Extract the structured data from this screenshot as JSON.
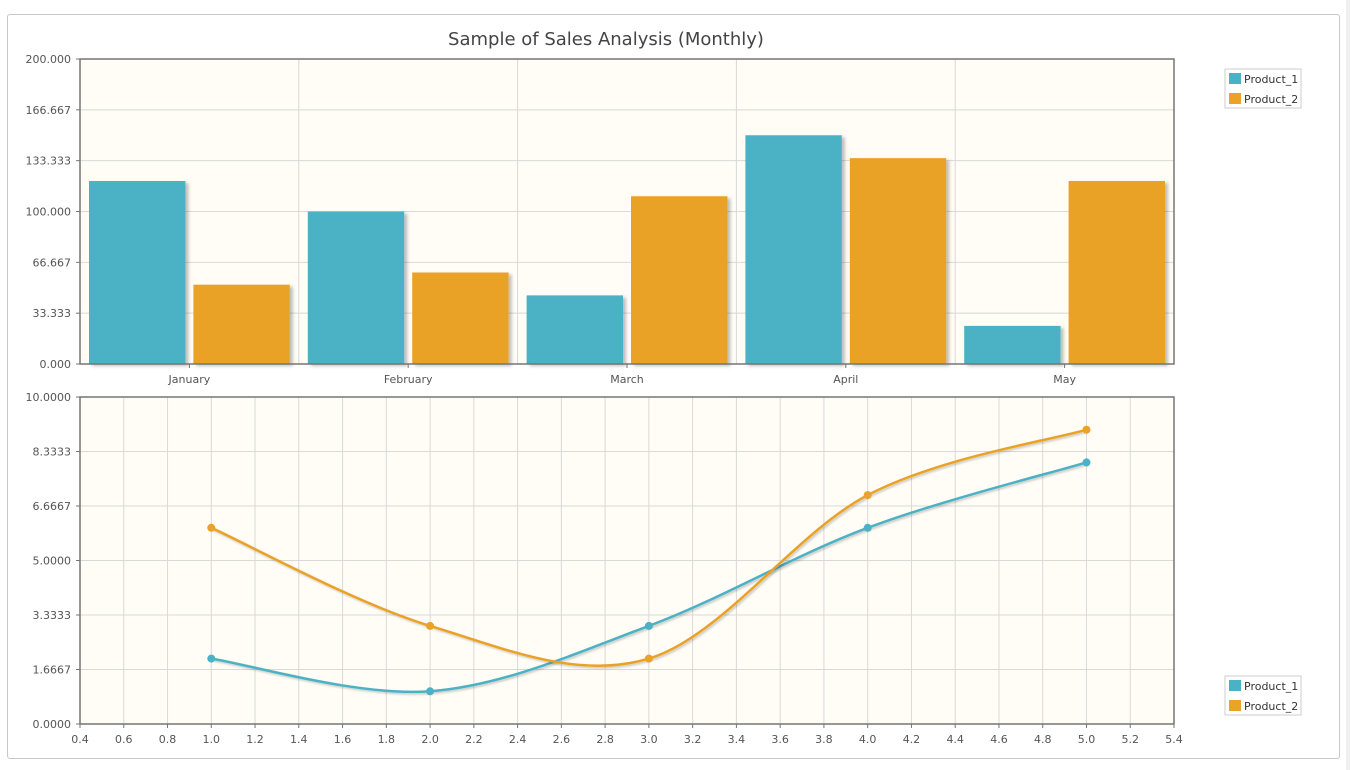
{
  "colors": {
    "product_1": "#4bb2c5",
    "product_2": "#eaa228",
    "plot_bg": "#fffdf6",
    "grid": "#d9d9d9",
    "axis": "#757575"
  },
  "chart_data": [
    {
      "type": "bar",
      "title": "Sample of Sales Analysis (Monthly)",
      "categories": [
        "January",
        "February",
        "March",
        "April",
        "May"
      ],
      "series": [
        {
          "name": "Product_1",
          "values": [
            120,
            100,
            45,
            150,
            25
          ]
        },
        {
          "name": "Product_2",
          "values": [
            52,
            60,
            110,
            135,
            120
          ]
        }
      ],
      "ylim": [
        0,
        200
      ],
      "y_ticks": [
        "0.000",
        "33.333",
        "66.667",
        "100.000",
        "133.333",
        "166.667",
        "200.000"
      ],
      "grid": true,
      "legend": "top-right"
    },
    {
      "type": "line",
      "series": [
        {
          "name": "Product_1",
          "x": [
            1,
            2,
            3,
            4,
            5
          ],
          "y": [
            2,
            1,
            3,
            6,
            8
          ]
        },
        {
          "name": "Product_2",
          "x": [
            1,
            2,
            3,
            4,
            5
          ],
          "y": [
            6,
            3,
            2,
            7,
            9
          ]
        }
      ],
      "xlim": [
        0.4,
        5.4
      ],
      "ylim": [
        0,
        10
      ],
      "x_ticks": [
        "0.4",
        "0.6",
        "0.8",
        "1.0",
        "1.2",
        "1.4",
        "1.6",
        "1.8",
        "2.0",
        "2.2",
        "2.4",
        "2.6",
        "2.8",
        "3.0",
        "3.2",
        "3.4",
        "3.6",
        "3.8",
        "4.0",
        "4.2",
        "4.4",
        "4.6",
        "4.8",
        "5.0",
        "5.2",
        "5.4"
      ],
      "y_ticks": [
        "0.0000",
        "1.6667",
        "3.3333",
        "5.0000",
        "6.6667",
        "8.3333",
        "10.0000"
      ],
      "grid": true,
      "legend": "bottom-right"
    }
  ]
}
